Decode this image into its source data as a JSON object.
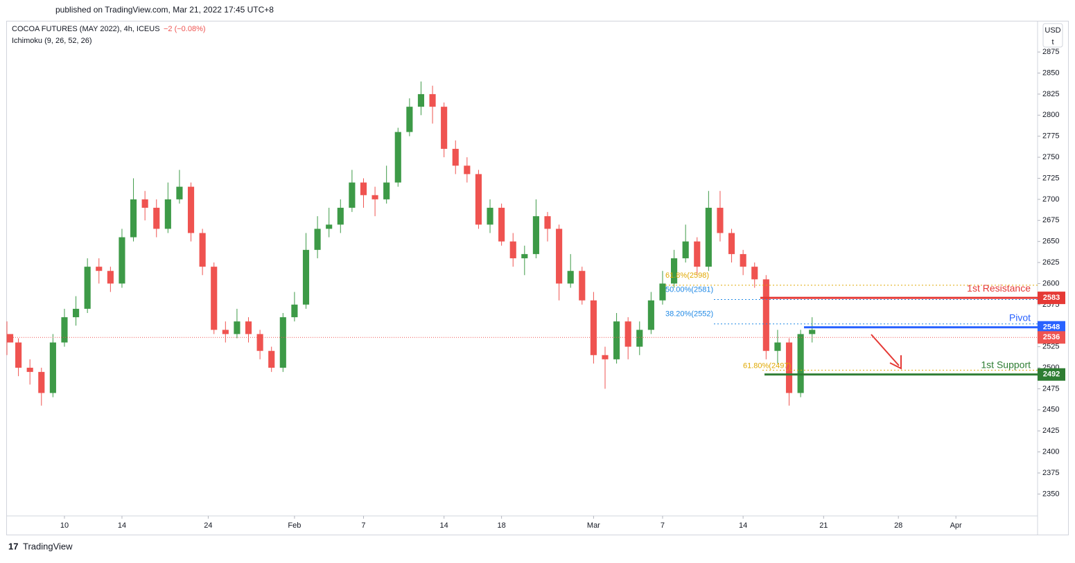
{
  "header": {
    "published": "published on TradingView.com, Mar 21, 2022 17:45 UTC+8",
    "symbol": "COCOA FUTURES (MAY 2022), 4h, ICEUS",
    "change": "−2 (−0.08%)",
    "indicator": "Ichimoku (9, 26, 52, 26)",
    "currency": "USD",
    "currency_sub": "t",
    "brand": "TradingView"
  },
  "chart_data": {
    "type": "candlestick",
    "up_color": "#3d9a47",
    "down_color": "#ef5350",
    "x": [
      0,
      2,
      4,
      6,
      8,
      10,
      12,
      14,
      16,
      18,
      20,
      22,
      24,
      26,
      28,
      30,
      32,
      34,
      36,
      38,
      40,
      42,
      44,
      46,
      48,
      50,
      52,
      54,
      56,
      58,
      60,
      62,
      64,
      66,
      68,
      70,
      72,
      74,
      76,
      78,
      80,
      82,
      84,
      86,
      88,
      90,
      92,
      94,
      96,
      98,
      100,
      102,
      104,
      106,
      108,
      110,
      112,
      114,
      116,
      118,
      120,
      122,
      124,
      126,
      128,
      130,
      132,
      134,
      136,
      138,
      140
    ],
    "open": [
      2540,
      2530,
      2500,
      2495,
      2470,
      2530,
      2560,
      2570,
      2620,
      2615,
      2600,
      2655,
      2700,
      2690,
      2665,
      2700,
      2715,
      2660,
      2620,
      2545,
      2540,
      2555,
      2540,
      2520,
      2500,
      2560,
      2575,
      2640,
      2665,
      2670,
      2690,
      2720,
      2705,
      2700,
      2720,
      2780,
      2810,
      2825,
      2810,
      2760,
      2740,
      2730,
      2670,
      2690,
      2650,
      2630,
      2635,
      2680,
      2665,
      2600,
      2615,
      2580,
      2515,
      2510,
      2555,
      2525,
      2545,
      2580,
      2600,
      2630,
      2650,
      2620,
      2690,
      2660,
      2635,
      2620,
      2605,
      2520,
      2530,
      2470,
      2540
    ],
    "high": [
      2555,
      2535,
      2510,
      2500,
      2540,
      2570,
      2585,
      2630,
      2630,
      2620,
      2665,
      2725,
      2710,
      2700,
      2720,
      2735,
      2720,
      2665,
      2625,
      2555,
      2570,
      2560,
      2545,
      2525,
      2565,
      2590,
      2660,
      2680,
      2690,
      2700,
      2735,
      2725,
      2715,
      2740,
      2785,
      2820,
      2840,
      2835,
      2815,
      2770,
      2750,
      2735,
      2700,
      2695,
      2660,
      2645,
      2700,
      2685,
      2670,
      2635,
      2620,
      2590,
      2525,
      2565,
      2560,
      2555,
      2590,
      2615,
      2640,
      2670,
      2655,
      2710,
      2710,
      2665,
      2640,
      2625,
      2610,
      2545,
      2535,
      2545,
      2560
    ],
    "low": [
      2515,
      2490,
      2480,
      2455,
      2465,
      2525,
      2550,
      2565,
      2600,
      2590,
      2595,
      2650,
      2675,
      2655,
      2660,
      2695,
      2650,
      2610,
      2540,
      2530,
      2535,
      2530,
      2510,
      2495,
      2495,
      2555,
      2570,
      2630,
      2655,
      2660,
      2685,
      2690,
      2680,
      2695,
      2715,
      2775,
      2800,
      2790,
      2750,
      2730,
      2720,
      2665,
      2660,
      2645,
      2620,
      2610,
      2630,
      2650,
      2580,
      2595,
      2575,
      2505,
      2475,
      2505,
      2510,
      2515,
      2540,
      2575,
      2595,
      2625,
      2610,
      2615,
      2650,
      2625,
      2610,
      2595,
      2510,
      2505,
      2455,
      2465,
      2530
    ],
    "close": [
      2530,
      2500,
      2495,
      2470,
      2530,
      2560,
      2570,
      2620,
      2615,
      2600,
      2655,
      2700,
      2690,
      2665,
      2700,
      2715,
      2660,
      2620,
      2545,
      2540,
      2555,
      2540,
      2520,
      2500,
      2560,
      2575,
      2640,
      2665,
      2670,
      2690,
      2720,
      2705,
      2700,
      2720,
      2780,
      2810,
      2825,
      2810,
      2760,
      2740,
      2730,
      2670,
      2690,
      2650,
      2630,
      2635,
      2680,
      2665,
      2600,
      2615,
      2580,
      2515,
      2510,
      2555,
      2525,
      2545,
      2580,
      2600,
      2630,
      2650,
      2620,
      2690,
      2660,
      2635,
      2620,
      2605,
      2520,
      2530,
      2470,
      2540,
      2545
    ],
    "xlim": [
      0,
      179.2
    ],
    "xticks": [
      {
        "value": 10,
        "label": "10"
      },
      {
        "value": 20,
        "label": "14"
      },
      {
        "value": 35,
        "label": "24"
      },
      {
        "value": 50,
        "label": "Feb"
      },
      {
        "value": 62,
        "label": "7"
      },
      {
        "value": 76,
        "label": "14"
      },
      {
        "value": 86,
        "label": "18"
      },
      {
        "value": 102,
        "label": "Mar"
      },
      {
        "value": 114,
        "label": "7"
      },
      {
        "value": 128,
        "label": "14"
      },
      {
        "value": 142,
        "label": "21"
      },
      {
        "value": 155,
        "label": "28"
      },
      {
        "value": 165,
        "label": "Apr"
      }
    ],
    "ylim": [
      2324,
      2908
    ],
    "yticks": [
      2350,
      2375,
      2400,
      2425,
      2450,
      2475,
      2500,
      2525,
      2550,
      2575,
      2600,
      2625,
      2650,
      2675,
      2700,
      2725,
      2750,
      2775,
      2800,
      2825,
      2850,
      2875
    ],
    "last_price": 2536,
    "levels": [
      {
        "name": "1st Resistance",
        "value": 2583,
        "color": "#e53935"
      },
      {
        "name": "Pivot",
        "value": 2548,
        "color": "#2962ff"
      },
      {
        "name": "1st Support",
        "value": 2492,
        "color": "#2e7d32"
      }
    ],
    "fib": [
      {
        "label": "61.8%(2598)",
        "value": 2598,
        "color": "#e0a800"
      },
      {
        "label": "50.00%(2581)",
        "value": 2581,
        "color": "#1e88e5"
      },
      {
        "label": "38.20%(2552)",
        "value": 2552,
        "color": "#1e88e5"
      },
      {
        "label": "61.80%(2497)",
        "value": 2497,
        "color": "#e0a800"
      }
    ]
  }
}
